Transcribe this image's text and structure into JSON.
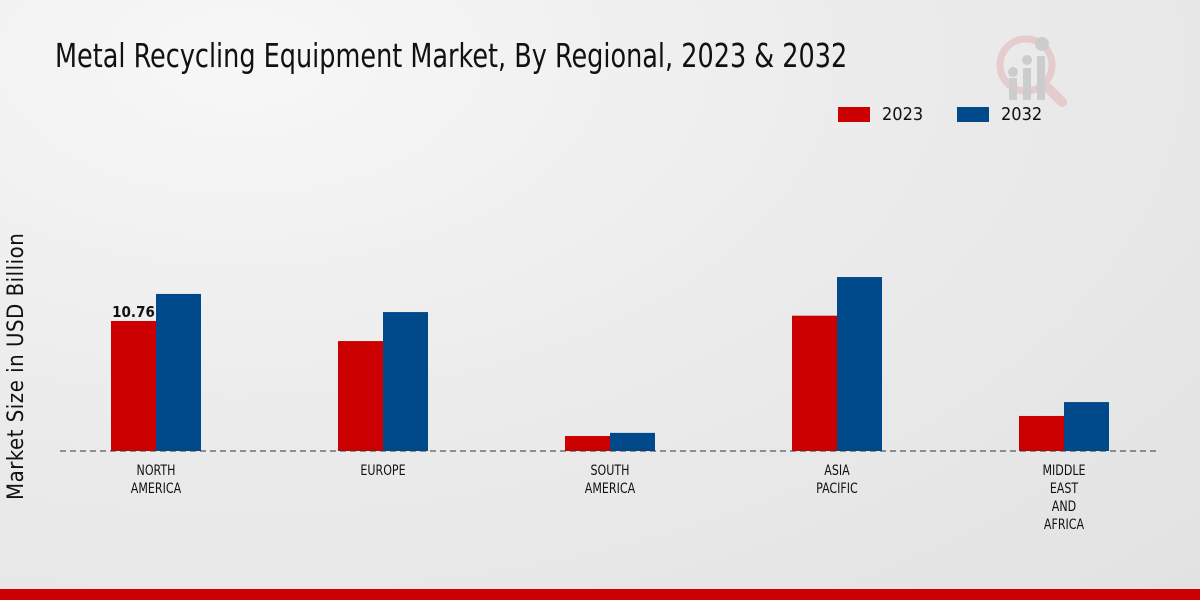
{
  "chart_data": {
    "type": "bar",
    "title": "Metal Recycling Equipment Market, By Regional, 2023 & 2032",
    "xlabel": "",
    "ylabel": "Market Size in USD Billion",
    "categories": [
      "NORTH\nAMERICA",
      "EUROPE",
      "SOUTH\nAMERICA",
      "ASIA\nPACIFIC",
      "MIDDLE\nEAST\nAND\nAFRICA"
    ],
    "series": [
      {
        "name": "2023",
        "color": "#cc0000",
        "values": [
          10.76,
          9.1,
          1.24,
          11.2,
          2.9
        ]
      },
      {
        "name": "2032",
        "color": "#004a8c",
        "values": [
          13.0,
          11.5,
          1.5,
          14.4,
          4.05
        ]
      }
    ],
    "data_labels": [
      {
        "series": 0,
        "index": 0,
        "text": "10.76"
      }
    ],
    "ylim": [
      0,
      30
    ],
    "grid": false,
    "legend_position": "top-right"
  }
}
